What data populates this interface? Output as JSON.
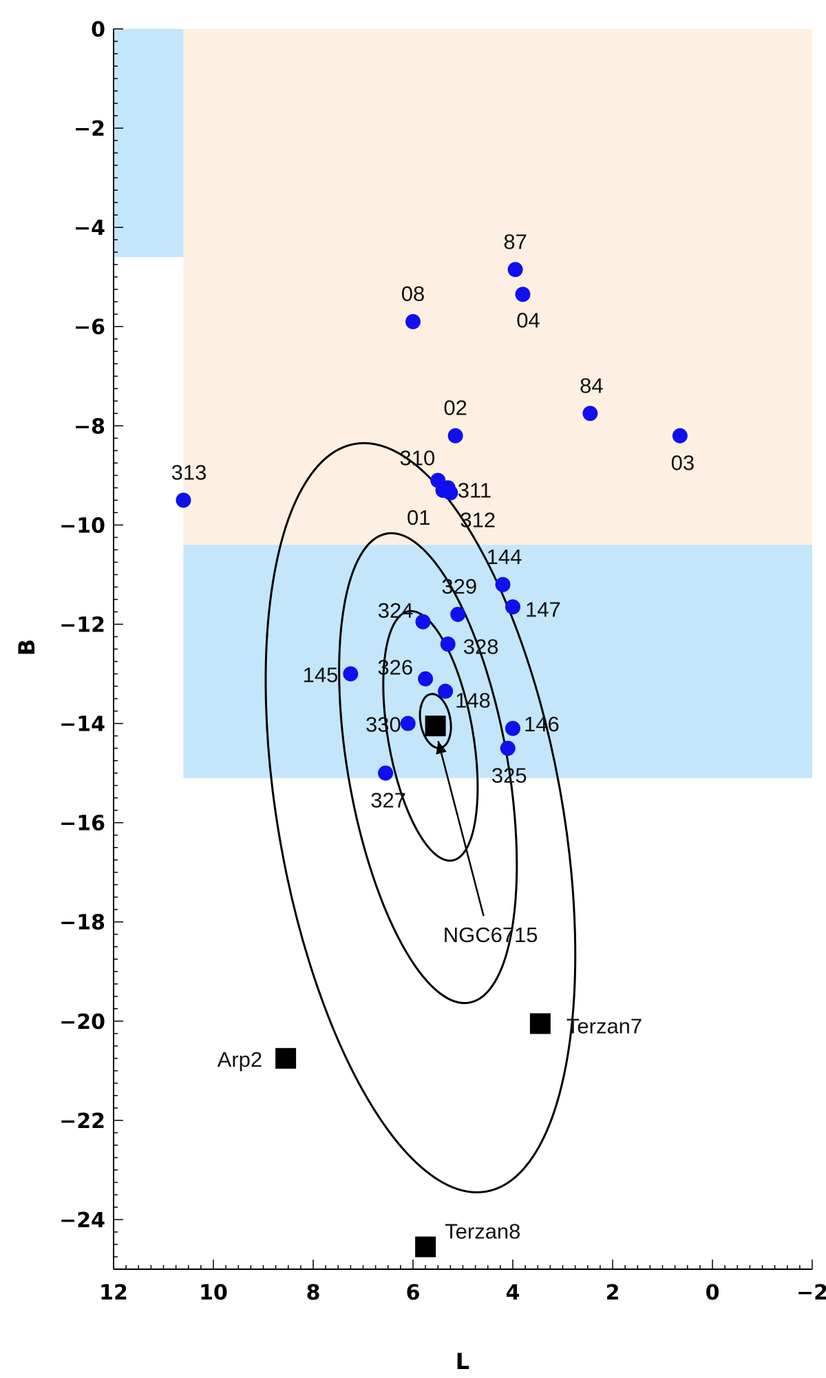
{
  "chart_data": {
    "type": "scatter",
    "title": "",
    "xlabel": "L",
    "ylabel": "B",
    "xlim": [
      12,
      -2
    ],
    "ylim": [
      -25,
      0
    ],
    "x_ticks": [
      12,
      10,
      8,
      6,
      4,
      2,
      0,
      -2
    ],
    "y_ticks": [
      0,
      -2,
      -4,
      -6,
      -8,
      -10,
      -12,
      -14,
      -16,
      -18,
      -20,
      -22,
      -24
    ],
    "grid": false,
    "colors": {
      "points": "#1010ee",
      "blue_region": "#c4e6fb",
      "orange_region": "#fdf0e2",
      "objects": "#000000",
      "contours": "#000000"
    },
    "regions": [
      {
        "color": "blue",
        "l_range": [
          12,
          10.6
        ],
        "b_range": [
          0,
          -4.6
        ]
      },
      {
        "color": "orange",
        "l_range": [
          10.6,
          -2
        ],
        "b_range": [
          0,
          -10.4
        ]
      },
      {
        "color": "blue",
        "l_range": [
          10.6,
          -2
        ],
        "b_range": [
          -10.4,
          -15.1
        ]
      }
    ],
    "points": [
      {
        "label": "87",
        "l": 3.95,
        "b": -4.85
      },
      {
        "label": "04",
        "l": 3.8,
        "b": -5.35
      },
      {
        "label": "08",
        "l": 6.0,
        "b": -5.9
      },
      {
        "label": "84",
        "l": 2.45,
        "b": -7.75
      },
      {
        "label": "02",
        "l": 5.15,
        "b": -8.2
      },
      {
        "label": "03",
        "l": 0.65,
        "b": -8.2
      },
      {
        "label": "310",
        "l": 5.5,
        "b": -9.1
      },
      {
        "label": "01",
        "l": 5.4,
        "b": -9.3
      },
      {
        "label": "311",
        "l": 5.3,
        "b": -9.25
      },
      {
        "label": "312",
        "l": 5.25,
        "b": -9.35
      },
      {
        "label": "313",
        "l": 10.6,
        "b": -9.5
      },
      {
        "label": "144",
        "l": 4.2,
        "b": -11.2
      },
      {
        "label": "147",
        "l": 4.0,
        "b": -11.65
      },
      {
        "label": "329",
        "l": 5.1,
        "b": -11.8
      },
      {
        "label": "324",
        "l": 5.8,
        "b": -11.95
      },
      {
        "label": "328",
        "l": 5.3,
        "b": -12.4
      },
      {
        "label": "145",
        "l": 7.25,
        "b": -13.0
      },
      {
        "label": "326",
        "l": 5.75,
        "b": -13.1
      },
      {
        "label": "148",
        "l": 5.35,
        "b": -13.35
      },
      {
        "label": "330",
        "l": 6.1,
        "b": -14.0
      },
      {
        "label": "146",
        "l": 4.0,
        "b": -14.1
      },
      {
        "label": "325",
        "l": 4.1,
        "b": -14.5
      },
      {
        "label": "327",
        "l": 6.55,
        "b": -15.0
      }
    ],
    "objects": [
      {
        "label": "NGC6715",
        "l": 5.55,
        "b": -14.05
      },
      {
        "label": "Terzan7",
        "l": 3.45,
        "b": -20.05
      },
      {
        "label": "Arp2",
        "l": 8.55,
        "b": -20.75
      },
      {
        "label": "Terzan8",
        "l": 5.75,
        "b": -24.55
      }
    ],
    "contours": [
      {
        "center_l": 5.55,
        "center_b": -13.95,
        "half_width_l": 0.3,
        "half_height_b": 0.55,
        "tilt_deg": -10
      },
      {
        "center_l": 5.65,
        "center_b": -14.25,
        "half_width_l": 0.85,
        "half_height_b": 2.55,
        "tilt_deg": -10
      },
      {
        "center_l": 5.7,
        "center_b": -14.9,
        "half_width_l": 1.6,
        "half_height_b": 4.8,
        "tilt_deg": -10
      },
      {
        "center_l": 5.85,
        "center_b": -15.9,
        "half_width_l": 2.85,
        "half_height_b": 7.65,
        "tilt_deg": -10
      }
    ]
  }
}
